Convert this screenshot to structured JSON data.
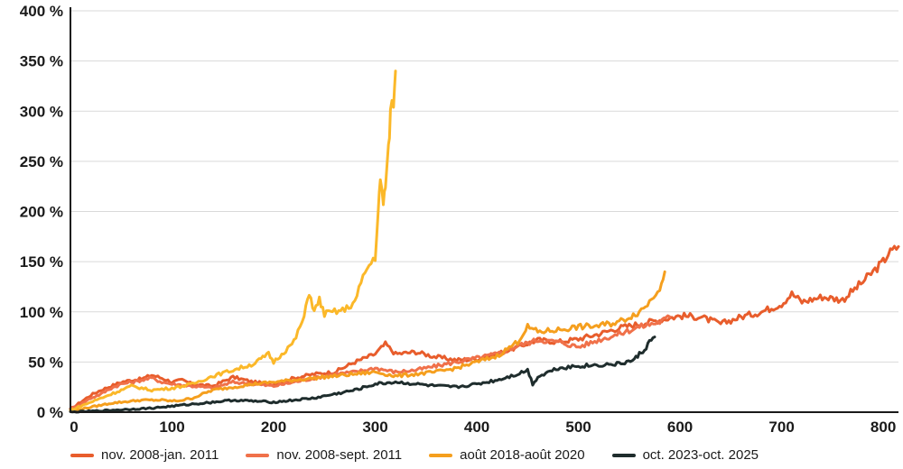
{
  "chart_data": {
    "type": "line",
    "title": "",
    "xlabel": "",
    "ylabel": "",
    "xlim": [
      0,
      815
    ],
    "ylim": [
      0,
      400
    ],
    "x_ticks": [
      0,
      100,
      200,
      300,
      400,
      500,
      600,
      700,
      800
    ],
    "x_tick_labels": [
      "0",
      "100",
      "200",
      "300",
      "400",
      "500",
      "600",
      "700",
      "800"
    ],
    "y_ticks": [
      0,
      50,
      100,
      150,
      200,
      250,
      300,
      350,
      400
    ],
    "y_tick_labels": [
      "0 %",
      "50 %",
      "100 %",
      "150 %",
      "200 %",
      "250 %",
      "300 %",
      "350 %",
      "400 %"
    ],
    "grid": "horizontal",
    "legend_position": "bottom",
    "series": [
      {
        "name": "nov. 2008-jan. 2011",
        "color": "#e85d2c",
        "x": [
          0,
          10,
          20,
          30,
          40,
          50,
          60,
          70,
          80,
          90,
          100,
          110,
          120,
          140,
          160,
          180,
          200,
          220,
          240,
          260,
          280,
          300,
          310,
          320,
          340,
          360,
          380,
          400,
          420,
          440,
          460,
          480,
          500,
          520,
          540,
          560,
          580,
          600,
          620,
          640,
          660,
          680,
          700,
          710,
          720,
          740,
          760,
          780,
          790,
          800,
          805,
          815
        ],
        "y": [
          3,
          10,
          17,
          22,
          26,
          30,
          32,
          33,
          37,
          34,
          30,
          32,
          28,
          26,
          35,
          30,
          28,
          34,
          38,
          40,
          50,
          58,
          68,
          58,
          60,
          55,
          52,
          53,
          58,
          65,
          72,
          70,
          73,
          78,
          84,
          88,
          92,
          96,
          95,
          88,
          95,
          100,
          108,
          118,
          110,
          115,
          112,
          130,
          140,
          150,
          158,
          165
        ]
      },
      {
        "name": "nov. 2008-sept. 2011",
        "color": "#f0714a",
        "x": [
          0,
          10,
          20,
          30,
          40,
          50,
          60,
          70,
          80,
          90,
          100,
          120,
          140,
          160,
          180,
          200,
          220,
          240,
          260,
          280,
          300,
          320,
          340,
          360,
          380,
          400,
          420,
          440,
          460,
          480,
          500,
          520,
          540,
          560,
          580,
          590
        ],
        "y": [
          3,
          8,
          14,
          18,
          24,
          28,
          30,
          32,
          34,
          30,
          28,
          26,
          24,
          30,
          28,
          26,
          30,
          34,
          38,
          40,
          44,
          40,
          42,
          46,
          50,
          54,
          58,
          66,
          72,
          70,
          65,
          72,
          78,
          85,
          90,
          95
        ]
      },
      {
        "name": "août 2018-août 2020",
        "color": "#f59f1e",
        "x": [
          0,
          10,
          20,
          30,
          40,
          50,
          60,
          70,
          80,
          90,
          100,
          110,
          120,
          130,
          140,
          160,
          180,
          200,
          220,
          240,
          260,
          280,
          300,
          320,
          340,
          360,
          380,
          400,
          420,
          440,
          450,
          460,
          480,
          500,
          520,
          540,
          560,
          570,
          580,
          585
        ],
        "y": [
          1,
          3,
          5,
          7,
          9,
          10,
          11,
          12,
          12,
          12,
          11,
          12,
          14,
          18,
          22,
          25,
          28,
          30,
          32,
          34,
          36,
          38,
          40,
          36,
          38,
          40,
          44,
          50,
          56,
          70,
          85,
          80,
          82,
          85,
          86,
          90,
          100,
          110,
          125,
          140
        ]
      },
      {
        "name": "",
        "color": "#fbb829",
        "x": [
          0,
          20,
          40,
          60,
          80,
          100,
          120,
          140,
          160,
          180,
          195,
          200,
          210,
          220,
          230,
          235,
          240,
          245,
          250,
          260,
          270,
          280,
          290,
          300,
          303,
          305,
          308,
          310,
          313,
          315,
          318,
          320
        ],
        "y": [
          2,
          10,
          18,
          26,
          22,
          24,
          28,
          36,
          42,
          48,
          58,
          50,
          60,
          70,
          95,
          120,
          100,
          112,
          98,
          100,
          102,
          110,
          140,
          155,
          200,
          230,
          210,
          225,
          260,
          300,
          310,
          340
        ]
      },
      {
        "name": "oct. 2023-oct. 2025",
        "color": "#1f2d2d",
        "x": [
          0,
          20,
          40,
          60,
          80,
          100,
          120,
          140,
          160,
          180,
          200,
          220,
          240,
          260,
          280,
          300,
          320,
          340,
          360,
          380,
          400,
          420,
          440,
          450,
          455,
          460,
          470,
          480,
          500,
          520,
          540,
          555,
          560,
          565,
          570,
          575
        ],
        "y": [
          0,
          1,
          2,
          3,
          4,
          6,
          8,
          10,
          12,
          11,
          10,
          12,
          14,
          18,
          22,
          28,
          30,
          28,
          26,
          25,
          28,
          32,
          38,
          42,
          28,
          35,
          40,
          44,
          46,
          47,
          48,
          52,
          58,
          62,
          70,
          75
        ]
      }
    ],
    "legend": [
      {
        "label": "nov. 2008-jan. 2011",
        "color": "#e85d2c"
      },
      {
        "label": "nov. 2008-sept. 2011",
        "color": "#f0714a"
      },
      {
        "label": "août 2018-août 2020",
        "color": "#f59f1e"
      },
      {
        "label": "oct. 2023-oct. 2025",
        "color": "#1f2d2d"
      }
    ]
  }
}
